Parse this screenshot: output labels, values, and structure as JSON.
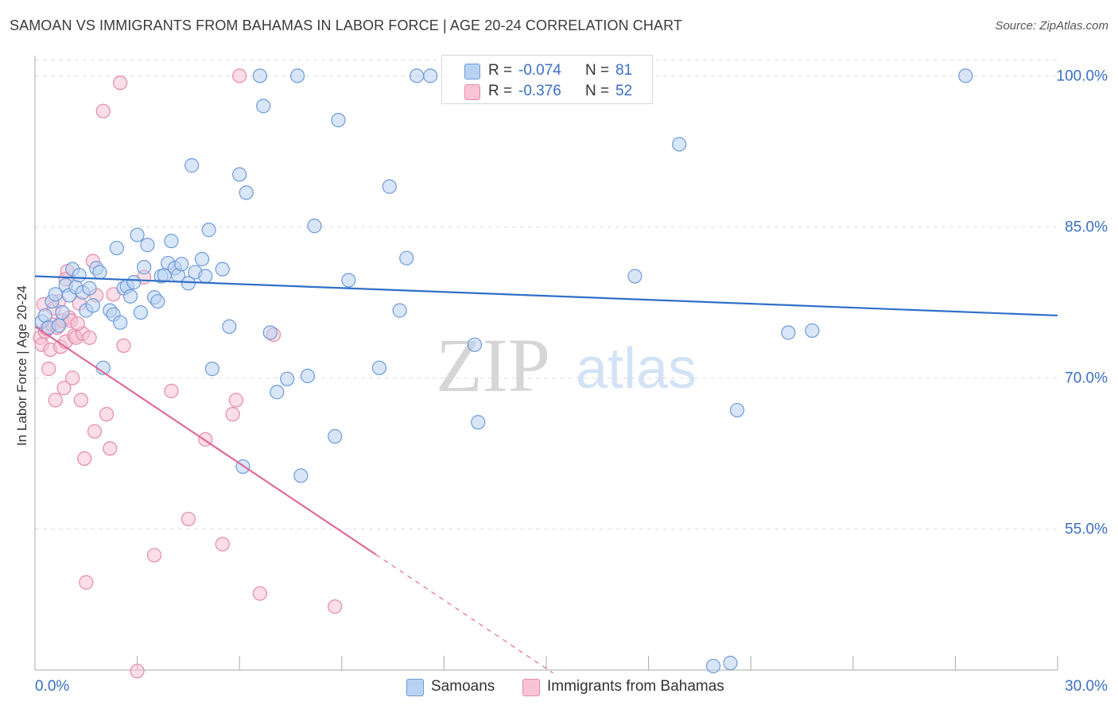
{
  "header": {
    "title": "SAMOAN VS IMMIGRANTS FROM BAHAMAS IN LABOR FORCE | AGE 20-24 CORRELATION CHART",
    "source": "Source: ZipAtlas.com"
  },
  "watermark": {
    "zip": "ZIP",
    "atlas": "atlas"
  },
  "colors": {
    "blue_fill": "#b9d2f2",
    "blue_stroke": "#6d9bd9",
    "blue_line": "#2f6fc9",
    "pink_fill": "#f8c3d4",
    "pink_stroke": "#e68aa9",
    "pink_line": "#e06b97",
    "tick_text": "#3a6fc4",
    "grid": "#dddddd"
  },
  "legend": {
    "rows": [
      {
        "r_label": "R =",
        "r_value": "-0.074",
        "n_label": "N =",
        "n_value": "81",
        "color": "#b9d2f2"
      },
      {
        "r_label": "R =",
        "r_value": "-0.376",
        "n_label": "N =",
        "n_value": "52",
        "color": "#f8c3d4"
      }
    ]
  },
  "bottom_legend": [
    {
      "label": "Samoans"
    },
    {
      "label": "Immigrants from Bahamas"
    }
  ],
  "chart_data": {
    "type": "scatter",
    "title": "SAMOAN VS IMMIGRANTS FROM BAHAMAS IN LABOR FORCE | AGE 20-24 CORRELATION CHART",
    "xlabel": "",
    "ylabel": "In Labor Force | Age 20-24",
    "xlim": [
      0,
      30
    ],
    "ylim": [
      41,
      102
    ],
    "x_tick_labels": [
      {
        "value": 0,
        "label": "0.0%"
      },
      {
        "value": 30,
        "label": "30.0%"
      }
    ],
    "y_tick_labels": [
      {
        "value": 100,
        "label": "100.0%"
      },
      {
        "value": 85,
        "label": "85.0%"
      },
      {
        "value": 70,
        "label": "70.0%"
      },
      {
        "value": 55,
        "label": "55.0%"
      }
    ],
    "grid": true,
    "series": [
      {
        "name": "Samoans",
        "R": -0.074,
        "N": 81,
        "trend": {
          "x0": 0,
          "y0": 80.1,
          "x1": 30,
          "y1": 76.2
        },
        "points": [
          [
            0.2,
            75.6
          ],
          [
            0.3,
            76.2
          ],
          [
            0.4,
            75.0
          ],
          [
            0.5,
            77.6
          ],
          [
            0.6,
            78.3
          ],
          [
            0.7,
            75.2
          ],
          [
            0.8,
            76.5
          ],
          [
            0.9,
            79.2
          ],
          [
            1.0,
            78.2
          ],
          [
            1.1,
            80.8
          ],
          [
            1.2,
            79.0
          ],
          [
            1.3,
            80.2
          ],
          [
            1.4,
            78.5
          ],
          [
            1.5,
            76.7
          ],
          [
            1.6,
            78.9
          ],
          [
            1.7,
            77.2
          ],
          [
            1.8,
            80.9
          ],
          [
            1.9,
            80.5
          ],
          [
            2.0,
            71.0
          ],
          [
            2.2,
            76.7
          ],
          [
            2.3,
            76.3
          ],
          [
            2.4,
            82.9
          ],
          [
            2.5,
            75.5
          ],
          [
            2.6,
            78.9
          ],
          [
            2.7,
            79.1
          ],
          [
            2.8,
            78.1
          ],
          [
            2.9,
            79.5
          ],
          [
            3.0,
            84.2
          ],
          [
            3.1,
            76.5
          ],
          [
            3.2,
            81.0
          ],
          [
            3.3,
            83.2
          ],
          [
            3.5,
            78.0
          ],
          [
            3.6,
            77.6
          ],
          [
            3.7,
            80.1
          ],
          [
            3.8,
            80.2
          ],
          [
            3.9,
            81.4
          ],
          [
            4.0,
            83.6
          ],
          [
            4.1,
            80.9
          ],
          [
            4.2,
            80.2
          ],
          [
            4.3,
            81.3
          ],
          [
            4.5,
            79.4
          ],
          [
            4.6,
            91.1
          ],
          [
            4.7,
            80.5
          ],
          [
            4.9,
            81.8
          ],
          [
            5.0,
            80.1
          ],
          [
            5.1,
            84.7
          ],
          [
            5.2,
            70.9
          ],
          [
            5.5,
            80.8
          ],
          [
            5.7,
            75.1
          ],
          [
            6.0,
            90.2
          ],
          [
            6.1,
            61.2
          ],
          [
            6.2,
            88.4
          ],
          [
            6.6,
            100.0
          ],
          [
            6.7,
            97.0
          ],
          [
            6.9,
            74.5
          ],
          [
            7.1,
            68.6
          ],
          [
            7.4,
            69.9
          ],
          [
            7.7,
            100.0
          ],
          [
            7.8,
            60.3
          ],
          [
            8.0,
            70.2
          ],
          [
            8.2,
            85.1
          ],
          [
            8.8,
            64.2
          ],
          [
            8.9,
            95.6
          ],
          [
            9.2,
            79.7
          ],
          [
            10.1,
            71.0
          ],
          [
            10.4,
            89.0
          ],
          [
            10.7,
            76.7
          ],
          [
            10.9,
            81.9
          ],
          [
            11.2,
            100.0
          ],
          [
            11.6,
            100.0
          ],
          [
            12.9,
            73.3
          ],
          [
            13.0,
            65.6
          ],
          [
            14.6,
            100.0
          ],
          [
            17.6,
            80.1
          ],
          [
            18.9,
            93.2
          ],
          [
            19.9,
            41.4
          ],
          [
            20.4,
            41.7
          ],
          [
            20.6,
            66.8
          ],
          [
            22.1,
            74.5
          ],
          [
            22.8,
            74.7
          ],
          [
            27.3,
            100.0
          ]
        ]
      },
      {
        "name": "Immigrants from Bahamas",
        "R": -0.376,
        "N": 52,
        "trend": {
          "x0": 0,
          "y0": 75.1,
          "x1": 15.2,
          "y1": 40.7,
          "solid_until_x": 10.0
        },
        "points": [
          [
            0.15,
            74.0
          ],
          [
            0.2,
            73.3
          ],
          [
            0.25,
            77.3
          ],
          [
            0.3,
            74.6
          ],
          [
            0.35,
            74.9
          ],
          [
            0.4,
            70.9
          ],
          [
            0.45,
            72.8
          ],
          [
            0.5,
            75.3
          ],
          [
            0.55,
            76.9
          ],
          [
            0.6,
            67.8
          ],
          [
            0.65,
            75.0
          ],
          [
            0.7,
            77.6
          ],
          [
            0.75,
            73.1
          ],
          [
            0.8,
            75.7
          ],
          [
            0.85,
            69.0
          ],
          [
            0.9,
            73.6
          ],
          [
            0.95,
            80.6
          ],
          [
            1.0,
            76.0
          ],
          [
            1.05,
            75.7
          ],
          [
            1.1,
            70.0
          ],
          [
            1.15,
            74.2
          ],
          [
            1.2,
            74.0
          ],
          [
            1.3,
            77.4
          ],
          [
            1.35,
            67.8
          ],
          [
            1.4,
            74.4
          ],
          [
            1.45,
            62.0
          ],
          [
            1.5,
            49.7
          ],
          [
            1.6,
            74.0
          ],
          [
            1.7,
            81.6
          ],
          [
            1.75,
            64.7
          ],
          [
            1.8,
            78.2
          ],
          [
            2.0,
            96.5
          ],
          [
            2.1,
            66.4
          ],
          [
            2.2,
            63.0
          ],
          [
            2.3,
            78.3
          ],
          [
            2.5,
            99.3
          ],
          [
            2.6,
            73.2
          ],
          [
            3.0,
            40.9
          ],
          [
            3.2,
            80.0
          ],
          [
            3.5,
            52.4
          ],
          [
            4.0,
            68.7
          ],
          [
            4.5,
            56.0
          ],
          [
            5.0,
            63.9
          ],
          [
            5.5,
            53.5
          ],
          [
            5.8,
            66.4
          ],
          [
            5.9,
            67.8
          ],
          [
            6.0,
            100.0
          ],
          [
            6.6,
            48.6
          ],
          [
            7.0,
            74.3
          ],
          [
            8.8,
            47.3
          ],
          [
            1.25,
            75.4
          ],
          [
            0.9,
            79.8
          ]
        ]
      }
    ]
  }
}
